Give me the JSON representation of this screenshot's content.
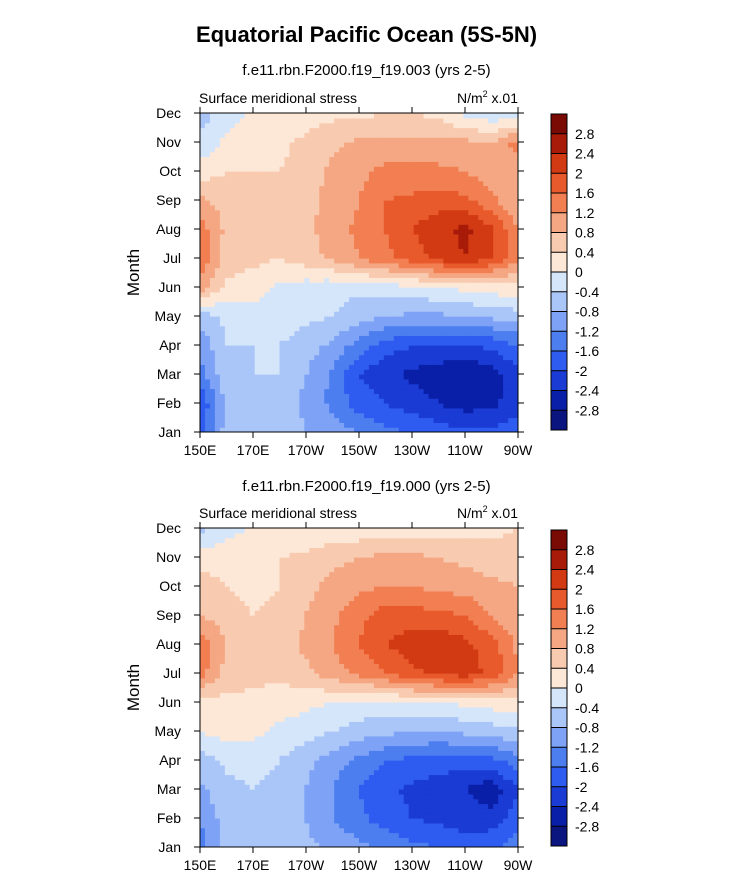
{
  "page": {
    "title": "Equatorial Pacific Ocean (5S-5N)"
  },
  "colors": {
    "levels": [
      -2.8,
      -2.4,
      -2.0,
      -1.6,
      -1.2,
      -0.8,
      -0.4,
      0.0,
      0.4,
      0.8,
      1.2,
      1.6,
      2.0,
      2.4,
      2.8
    ],
    "palette": [
      "#0a1580",
      "#0a1fa8",
      "#1a3bd4",
      "#2e5cf0",
      "#4d7ef0",
      "#7ea2f5",
      "#aac6f8",
      "#d5e6fa",
      "#fde8d8",
      "#f8cbb0",
      "#f5a783",
      "#f27f52",
      "#e85a2b",
      "#d13a12",
      "#a81b08",
      "#7a0a04"
    ]
  },
  "chart_data": [
    {
      "type": "heatmap",
      "title": "f.e11.rbn.F2000.f19_f19.003 (yrs 2-5)",
      "left_label": "Surface meridional stress",
      "right_label_base": "N/m",
      "right_label_sup": "2",
      "right_label_scale": " x.01",
      "ylabel": "Month",
      "x_ticks": [
        "150E",
        "170E",
        "170W",
        "150W",
        "130W",
        "110W",
        "90W"
      ],
      "x_tick_values": [
        150,
        170,
        190,
        210,
        230,
        250,
        270
      ],
      "y_ticks": [
        "Jan",
        "Feb",
        "Mar",
        "Apr",
        "May",
        "Jun",
        "Jul",
        "Aug",
        "Sep",
        "Oct",
        "Nov",
        "Dec"
      ],
      "xlim": [
        150,
        270
      ],
      "colorbar_labels": [
        "2.8",
        "2.4",
        "2",
        "1.6",
        "1.2",
        "0.8",
        "0.4",
        "0",
        "-0.4",
        "-0.8",
        "-1.2",
        "-1.6",
        "-2",
        "-2.4",
        "-2.8"
      ],
      "lon": [
        150,
        160,
        170,
        180,
        190,
        200,
        210,
        220,
        230,
        240,
        250,
        260,
        270
      ],
      "values": [
        [
          -1.8,
          -0.6,
          -0.5,
          -0.5,
          -0.8,
          -1.0,
          -1.2,
          -1.5,
          -1.6,
          -1.8,
          -1.9,
          -1.9,
          -1.7
        ],
        [
          -2.0,
          -0.7,
          -0.6,
          -0.6,
          -0.9,
          -1.3,
          -1.8,
          -2.0,
          -2.2,
          -2.4,
          -2.6,
          -2.5,
          -2.2
        ],
        [
          -1.4,
          -0.5,
          -0.4,
          -0.4,
          -0.8,
          -1.3,
          -2.0,
          -2.3,
          -2.5,
          -2.6,
          -2.8,
          -2.6,
          -2.1
        ],
        [
          -1.1,
          -0.4,
          -0.4,
          -0.4,
          -0.6,
          -0.9,
          -1.4,
          -1.8,
          -2.0,
          -2.1,
          -2.0,
          -1.9,
          -1.6
        ],
        [
          -0.6,
          -0.3,
          -0.2,
          -0.2,
          -0.3,
          -0.4,
          -0.6,
          -0.8,
          -0.9,
          -0.9,
          -0.8,
          -0.7,
          -0.6
        ],
        [
          1.0,
          0.3,
          0.2,
          -0.1,
          -0.2,
          -0.3,
          -0.3,
          -0.2,
          -0.1,
          0.0,
          0.1,
          0.2,
          0.3
        ],
        [
          1.5,
          0.6,
          0.5,
          0.4,
          0.6,
          0.9,
          1.2,
          1.5,
          1.8,
          2.1,
          2.4,
          2.0,
          1.3
        ],
        [
          1.4,
          0.7,
          0.6,
          0.5,
          0.7,
          1.0,
          1.3,
          1.6,
          2.0,
          2.3,
          2.5,
          2.1,
          1.2
        ],
        [
          0.9,
          0.6,
          0.5,
          0.5,
          0.7,
          0.9,
          1.2,
          1.6,
          1.7,
          1.8,
          1.7,
          1.3,
          0.8
        ],
        [
          0.2,
          0.4,
          0.4,
          0.4,
          0.6,
          0.9,
          1.1,
          1.3,
          1.3,
          1.3,
          1.2,
          1.0,
          0.9
        ],
        [
          -0.3,
          0.1,
          0.2,
          0.3,
          0.5,
          0.7,
          0.9,
          0.9,
          0.9,
          0.9,
          0.9,
          0.8,
          1.4
        ],
        [
          -0.6,
          -0.2,
          0.1,
          0.1,
          0.2,
          0.3,
          0.3,
          0.4,
          0.4,
          0.3,
          -0.1,
          -0.3,
          -0.4
        ]
      ]
    },
    {
      "type": "heatmap",
      "title": "f.e11.rbn.F2000.f19_f19.000 (yrs 2-5)",
      "left_label": "Surface meridional stress",
      "right_label_base": "N/m",
      "right_label_sup": "2",
      "right_label_scale": " x.01",
      "ylabel": "Month",
      "x_ticks": [
        "150E",
        "170E",
        "170W",
        "150W",
        "130W",
        "110W",
        "90W"
      ],
      "x_tick_values": [
        150,
        170,
        190,
        210,
        230,
        250,
        270
      ],
      "y_ticks": [
        "Jan",
        "Feb",
        "Mar",
        "Apr",
        "May",
        "Jun",
        "Jul",
        "Aug",
        "Sep",
        "Oct",
        "Nov",
        "Dec"
      ],
      "xlim": [
        150,
        270
      ],
      "colorbar_labels": [
        "2.8",
        "2.4",
        "2",
        "1.6",
        "1.2",
        "0.8",
        "0.4",
        "0",
        "-0.4",
        "-0.8",
        "-1.2",
        "-1.6",
        "-2",
        "-2.4",
        "-2.8"
      ],
      "lon": [
        150,
        160,
        170,
        180,
        190,
        200,
        210,
        220,
        230,
        240,
        250,
        260,
        270
      ],
      "values": [
        [
          -1.4,
          -0.6,
          -0.5,
          -0.5,
          -0.7,
          -0.9,
          -1.1,
          -1.3,
          -1.5,
          -1.6,
          -1.8,
          -1.7,
          -1.4
        ],
        [
          -1.2,
          -0.6,
          -0.5,
          -0.5,
          -0.8,
          -1.2,
          -1.5,
          -1.8,
          -2.0,
          -2.1,
          -2.2,
          -2.2,
          -1.8
        ],
        [
          -0.9,
          -0.5,
          -0.4,
          -0.5,
          -0.8,
          -1.2,
          -1.6,
          -1.9,
          -2.1,
          -2.2,
          -2.4,
          -2.7,
          -2.0
        ],
        [
          -0.6,
          -0.3,
          -0.3,
          -0.4,
          -0.7,
          -1.0,
          -1.3,
          -1.6,
          -1.7,
          -1.8,
          -1.8,
          -1.7,
          -1.4
        ],
        [
          0.0,
          0.2,
          0.1,
          -0.1,
          -0.2,
          -0.4,
          -0.6,
          -0.7,
          -0.8,
          -0.8,
          -0.7,
          -0.6,
          -0.5
        ],
        [
          0.2,
          0.3,
          0.3,
          0.2,
          0.1,
          0.0,
          -0.1,
          -0.1,
          0.0,
          0.0,
          0.1,
          0.2,
          0.3
        ],
        [
          1.4,
          0.6,
          0.5,
          0.5,
          0.7,
          1.0,
          1.3,
          1.6,
          1.9,
          2.1,
          2.2,
          1.9,
          1.2
        ],
        [
          1.5,
          0.8,
          0.6,
          0.6,
          0.9,
          1.2,
          1.6,
          2.0,
          2.2,
          2.3,
          2.1,
          1.8,
          1.1
        ],
        [
          0.8,
          0.6,
          0.4,
          0.5,
          0.8,
          1.1,
          1.5,
          1.8,
          1.8,
          1.7,
          1.6,
          1.2,
          0.8
        ],
        [
          0.6,
          0.4,
          0.3,
          0.4,
          0.7,
          0.9,
          1.1,
          1.2,
          1.2,
          1.1,
          1.0,
          0.9,
          0.8
        ],
        [
          0.2,
          0.2,
          0.3,
          0.4,
          0.5,
          0.7,
          0.8,
          0.9,
          0.9,
          0.8,
          0.7,
          0.6,
          0.5
        ],
        [
          -0.5,
          -0.1,
          0.0,
          0.0,
          0.0,
          0.1,
          0.1,
          0.2,
          0.2,
          0.2,
          0.3,
          0.3,
          0.4
        ]
      ]
    }
  ]
}
